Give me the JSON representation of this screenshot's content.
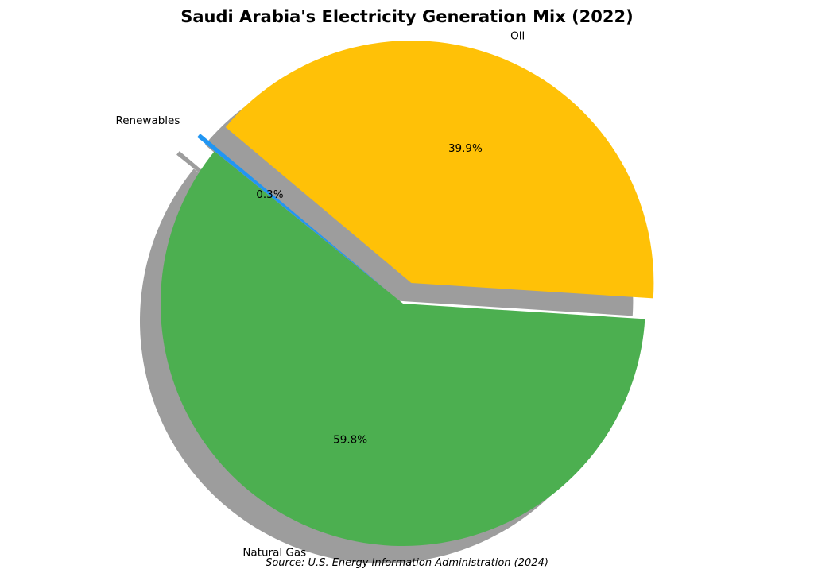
{
  "chart_data": {
    "type": "pie",
    "title": "Saudi Arabia's Electricity Generation Mix (2022)",
    "source": "Source: U.S. Energy Information Administration (2024)",
    "categories": [
      "Oil",
      "Natural Gas",
      "Renewables"
    ],
    "values": [
      39.9,
      59.8,
      0.3
    ],
    "percent_labels": [
      "39.9%",
      "59.8%",
      "0.3%"
    ],
    "colors": [
      "#FFC107",
      "#4CAF50",
      "#2196F3"
    ],
    "exploded": [
      "Oil",
      "Renewables"
    ],
    "shadow": true,
    "start_angle_deg": 140,
    "direction": "clockwise"
  }
}
